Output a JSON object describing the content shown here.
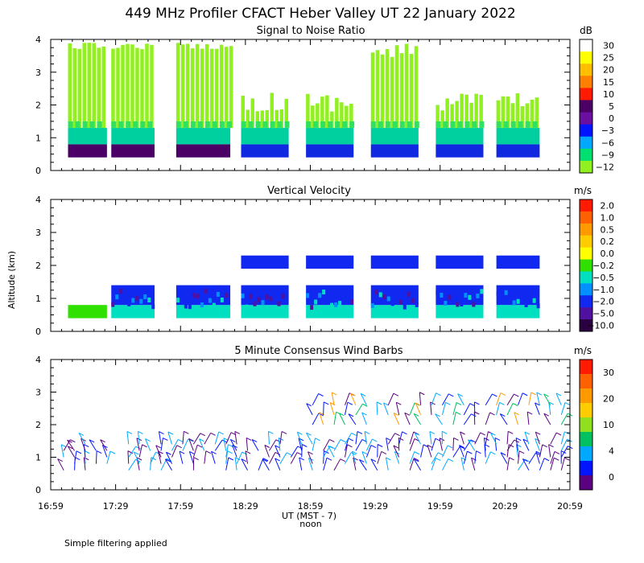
{
  "title": "449 MHz Profiler CFACT Heber Valley UT 22 January 2022",
  "footnote": "Simple filtering applied",
  "x_axis": {
    "label": "UT  (MST - 7)",
    "sublabel": "noon",
    "ticks": [
      "16:59",
      "17:29",
      "17:59",
      "18:29",
      "18:59",
      "19:29",
      "19:59",
      "20:29",
      "20:59"
    ]
  },
  "y_axis_label": "Altitude (km)",
  "chart_data": [
    {
      "type": "heatmap",
      "title": "Signal to Noise Ratio",
      "x": "time UT",
      "xlim": [
        "16:59",
        "20:59"
      ],
      "y": "altitude km",
      "ylim": [
        0,
        4
      ],
      "yticks": [
        "0",
        "1",
        "2",
        "3",
        "4"
      ],
      "colorbar": {
        "unit": "dB",
        "labels": [
          "30",
          "25",
          "20",
          "15",
          "10",
          "5",
          "0",
          "−3",
          "−6",
          "−9",
          "−12"
        ],
        "colors": [
          "#ffffff",
          "#ffff00",
          "#ffbf00",
          "#ff8000",
          "#ff1a00",
          "#4b0066",
          "#6a0fa0",
          "#0014ff",
          "#00a8ff",
          "#00e070",
          "#90f020"
        ]
      },
      "data_windows": [
        [
          "17:07",
          "17:25"
        ],
        [
          "17:27",
          "17:47"
        ],
        [
          "17:57",
          "18:22"
        ],
        [
          "18:27",
          "18:49"
        ],
        [
          "18:57",
          "19:19"
        ],
        [
          "19:27",
          "19:49"
        ],
        [
          "19:57",
          "20:19"
        ],
        [
          "20:25",
          "20:45"
        ]
      ],
      "layers": [
        {
          "from_km": 0.4,
          "to_km": 0.8,
          "value": "5"
        },
        {
          "from_km": 0.8,
          "to_km": 1.3,
          "value": "−6"
        },
        {
          "from_km": 1.3,
          "to_km": 4.0,
          "value": "−12"
        }
      ]
    },
    {
      "type": "heatmap",
      "title": "Vertical Velocity",
      "x": "time UT",
      "xlim": [
        "16:59",
        "20:59"
      ],
      "y": "altitude km",
      "ylim": [
        0,
        4
      ],
      "yticks": [
        "0",
        "1",
        "2",
        "3",
        "4"
      ],
      "colorbar": {
        "unit": "m/s",
        "labels": [
          "2.0",
          "1.0",
          "0.5",
          "0.2",
          "0.0",
          "−0.2",
          "−0.5",
          "−1.0",
          "−2.0",
          "−5.0",
          "−10.0"
        ],
        "colors": [
          "#ff1a00",
          "#ff6000",
          "#ff9900",
          "#ffcc00",
          "#ffff00",
          "#30e000",
          "#00e0c0",
          "#0090ff",
          "#1028f0",
          "#5010a0",
          "#2a0040"
        ]
      },
      "data_windows": [
        [
          "17:07",
          "17:25"
        ],
        [
          "17:27",
          "17:47"
        ],
        [
          "17:57",
          "18:22"
        ],
        [
          "18:27",
          "18:49"
        ],
        [
          "18:57",
          "19:19"
        ],
        [
          "19:27",
          "19:49"
        ],
        [
          "19:57",
          "20:19"
        ],
        [
          "20:25",
          "20:45"
        ]
      ],
      "layers": [
        {
          "from_km": 0.4,
          "to_km": 0.8,
          "value": "−0.5"
        },
        {
          "from_km": 0.8,
          "to_km": 1.4,
          "value": "−1.0"
        },
        {
          "from_km": 1.9,
          "to_km": 2.3,
          "value": "−2.0"
        }
      ]
    },
    {
      "type": "scatter",
      "title": "5 Minute Consensus Wind Barbs",
      "x": "time UT",
      "xlim": [
        "16:59",
        "20:59"
      ],
      "y": "altitude km",
      "ylim": [
        0,
        4
      ],
      "yticks": [
        "0",
        "1",
        "2",
        "3",
        "4"
      ],
      "colorbar": {
        "unit": "m/s",
        "labels": [
          "30",
          "20",
          "10",
          "4",
          "0"
        ],
        "colors": [
          "#ff1a00",
          "#ff6000",
          "#ff9900",
          "#ffcc00",
          "#90e020",
          "#00c060",
          "#00a8ff",
          "#0014ff",
          "#5a0080"
        ]
      },
      "barb_columns": {
        "times": [
          "17:05",
          "17:10",
          "17:15",
          "17:20",
          "17:25",
          "17:35",
          "17:40",
          "17:45",
          "17:50",
          "17:55",
          "18:00",
          "18:05",
          "18:10",
          "18:15",
          "18:20",
          "18:25",
          "18:30",
          "18:35",
          "18:40",
          "18:45",
          "18:50",
          "18:55",
          "19:00",
          "19:05",
          "19:10",
          "19:15",
          "19:20",
          "19:25",
          "19:30",
          "19:35",
          "19:40",
          "19:45",
          "19:50",
          "19:55",
          "20:00",
          "20:05",
          "20:10",
          "20:15",
          "20:20",
          "20:25",
          "20:30",
          "20:35",
          "20:40",
          "20:45",
          "20:50",
          "20:55"
        ],
        "altitudes_km": [
          0.6,
          0.8,
          1.0,
          1.2,
          1.4,
          2.0,
          2.3,
          2.6
        ]
      }
    }
  ]
}
